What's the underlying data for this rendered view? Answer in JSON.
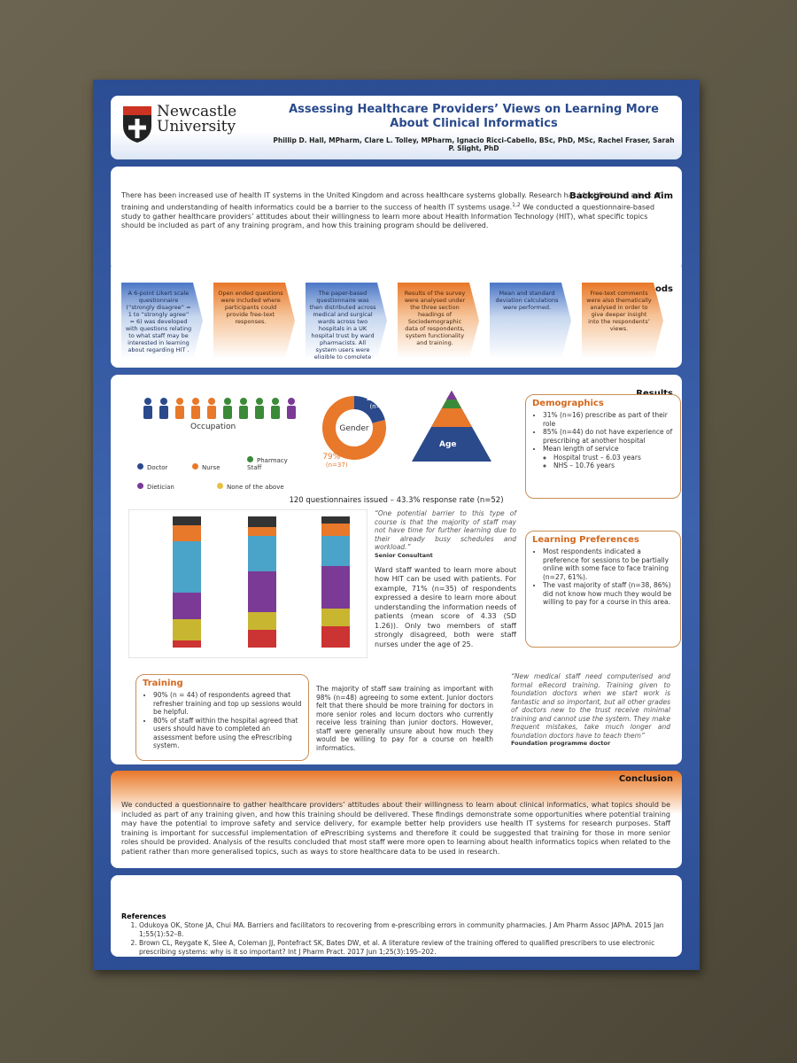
{
  "header": {
    "university": "Newcastle University",
    "title": "Assessing Healthcare Providers’ Views on Learning More About Clinical Informatics",
    "authors": "Phillip D. Hall, MPharm, Clare L. Tolley, MPharm, Ignacio Ricci-Cabello, BSc, PhD, MSc, Rachel Fraser, Sarah P. Slight, PhD"
  },
  "background": {
    "heading": "Background and Aim",
    "text": "There has been increased use of health IT systems in the United Kingdom and across healthcare systems globally. Research has identified that a lack of training and understanding of health informatics could be a barrier to the success of health IT systems usage.",
    "citation": "1,2",
    "text_end": " We conducted a questionnaire-based study to gather healthcare providers’ attitudes about their willingness to learn more about Health Information Technology (HIT), what specific topics should be included as part of any training program, and how this training program should be delivered."
  },
  "methods": {
    "heading": "Methods",
    "steps": [
      "A 6-point Likert scale questionnaire (“strongly disagree” = 1 to “strongly agree” = 6) was developed with questions relating to what staff may be interested in learning about regarding HIT .",
      "Open ended questions were included where participants could provide free-text responses.",
      "The paper-based questionnaire was then distributed across medical and surgical wards across two hospitals in a UK hospital trust by ward pharmacists. All system users were eligible to complete the questionnaire.",
      "Results of the survey were analysed under the three section headings of Sociodemographic data of respondents, system functionality and training.",
      "Mean and standard deviation calculations were performed.",
      "Free-text comments were also thematically analysed in order to give deeper insight into the respondents’ views."
    ]
  },
  "results": {
    "heading": "Results",
    "occupation_label": "Occupation",
    "legend": [
      "Doctor",
      "Nurse",
      "Pharmacy Staff",
      "Dietician",
      "None of the above"
    ],
    "gender": {
      "label": "Gender",
      "values": [
        21,
        79
      ],
      "value_labels": [
        "21%",
        "79%"
      ],
      "counts": [
        "(n=10)",
        "(n=37)"
      ]
    },
    "age_label": "Age",
    "response": "120 questionnaires issued – 43.3% response rate (n=52)",
    "demographics": {
      "heading": "Demographics",
      "items": [
        "31% (n=16) prescribe as part of their role",
        "85% (n=44) do not have experience of prescribing at another hospital",
        "Mean length of service"
      ],
      "subitems": [
        "Hospital trust – 6.03 years",
        "NHS – 10.76 years"
      ]
    },
    "quote1": "“One potential barrier to this type of course is that the majority of staff may not have time for further learning due to their already busy schedules and workload.”",
    "quote1_source": "Senior Consultant",
    "paragraph": "Ward staff wanted to learn more about how HIT can be used with patients. For example, 71% (n=35) of respondents expressed a desire to learn more about understanding the information needs of patients (mean score of 4.33 (SD 1.26)). Only two members of staff strongly disagreed, both were staff nurses under the age of 25.",
    "learning": {
      "heading": "Learning Preferences",
      "items": [
        "Most respondents indicated a preference for sessions to be partially online with some face to face training (n=27, 61%).",
        "The vast majority of staff (n=38, 86%) did not know how much they would be willing to pay for a course in this area."
      ]
    },
    "training": {
      "heading": "Training",
      "items": [
        "90% (n = 44) of respondents agreed that refresher training and top up sessions would be helpful.",
        "80% of staff within the hospital agreed that users should have to completed an assessment before using the ePrescribing system."
      ]
    },
    "training_paragraph": "The majority of staff saw training as important with 98% (n=48) agreeing to some extent. Junior doctors felt that there should be more training for doctors in more senior roles and locum doctors who currently receive less training than junior doctors. However, staff were generally unsure about how much they would be willing to pay for a course on health informatics.",
    "quote2": "“New medical staff need computerised and formal eRecord training. Training given to foundation doctors when we start work is fantastic and so important, but all other grades of doctors new to the trust receive minimal training and cannot use the system. They make frequent mistakes, take much longer and foundation doctors have to teach them”",
    "quote2_source": "Foundation programme doctor"
  },
  "conclusion": {
    "heading": "Conclusion",
    "text": "We conducted a questionnaire to gather healthcare providers’ attitudes about their willingness to learn about clinical informatics, what topics should be included as part of any training given, and how this training should be delivered. These findings demonstrate some opportunities where potential training may have the potential to improve safety and service delivery, for example better help providers use health IT systems for research purposes. Staff training is important for successful implementation of ePrescribing systems and therefore it could be suggested that training for those in more senior roles should be provided. Analysis of the results concluded that most staff were more open to learning about health informatics topics when related to the patient rather than more generalised topics, such as ways to store healthcare data to be used in research."
  },
  "references": {
    "heading": "References",
    "items": [
      "Odukoya OK, Stone JA, Chui MA. Barriers and facilitators to recovering from e-prescribing errors in community pharmacies. J Am Pharm Assoc JAPhA. 2015 Jan 1;55(1):52–8.",
      "Brown CL, Reygate K, Slee A, Coleman JJ, Pontefract SK, Bates DW, et al. A literature review of the training offered to qualified prescribers to use electronic prescribing systems: why is it so important? Int J Pharm Pract. 2017 Jun 1;25(3):195–202."
    ]
  }
}
